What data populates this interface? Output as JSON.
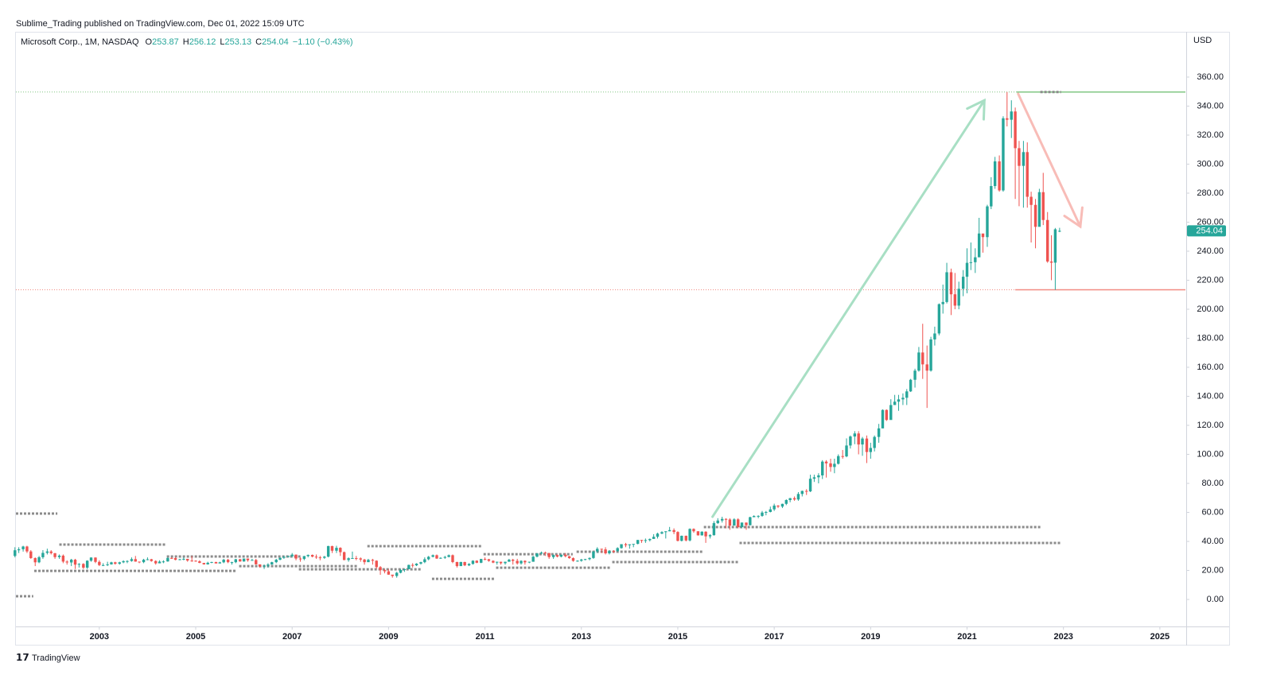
{
  "byline": "Sublime_Trading published on TradingView.com, Dec 01, 2022 15:09 UTC",
  "brand": "TradingView",
  "chart_data": {
    "type": "candlestick",
    "title": "Microsoft Corp., 1M, NASDAQ",
    "ohlc_labels": [
      "O",
      "H",
      "L",
      "C"
    ],
    "change": "−1.10 (−0.43%)",
    "currency": "USD",
    "up_color": "#26a69a",
    "down_color": "#ef5350",
    "x": [
      2001.25,
      2001.33,
      2001.42,
      2001.5,
      2001.58,
      2001.67,
      2001.75,
      2001.83,
      2001.92,
      2002,
      2002.08,
      2002.17,
      2002.25,
      2002.33,
      2002.42,
      2002.5,
      2002.58,
      2002.67,
      2002.75,
      2002.83,
      2002.92,
      2003,
      2003.08,
      2003.17,
      2003.25,
      2003.33,
      2003.42,
      2003.5,
      2003.58,
      2003.67,
      2003.75,
      2003.83,
      2003.92,
      2004,
      2004.08,
      2004.17,
      2004.25,
      2004.33,
      2004.42,
      2004.5,
      2004.58,
      2004.67,
      2004.75,
      2004.83,
      2004.92,
      2005,
      2005.08,
      2005.17,
      2005.25,
      2005.33,
      2005.42,
      2005.5,
      2005.58,
      2005.67,
      2005.75,
      2005.83,
      2005.92,
      2006,
      2006.08,
      2006.17,
      2006.25,
      2006.33,
      2006.42,
      2006.5,
      2006.58,
      2006.67,
      2006.75,
      2006.83,
      2006.92,
      2007,
      2007.08,
      2007.17,
      2007.25,
      2007.33,
      2007.42,
      2007.5,
      2007.58,
      2007.67,
      2007.75,
      2007.83,
      2007.92,
      2008,
      2008.08,
      2008.17,
      2008.25,
      2008.33,
      2008.42,
      2008.5,
      2008.58,
      2008.67,
      2008.75,
      2008.83,
      2008.92,
      2009,
      2009.08,
      2009.17,
      2009.25,
      2009.33,
      2009.42,
      2009.5,
      2009.58,
      2009.67,
      2009.75,
      2009.83,
      2009.92,
      2010,
      2010.08,
      2010.17,
      2010.25,
      2010.33,
      2010.42,
      2010.5,
      2010.58,
      2010.67,
      2010.75,
      2010.83,
      2010.92,
      2011,
      2011.08,
      2011.17,
      2011.25,
      2011.33,
      2011.42,
      2011.5,
      2011.58,
      2011.67,
      2011.75,
      2011.83,
      2011.92,
      2012,
      2012.08,
      2012.17,
      2012.25,
      2012.33,
      2012.42,
      2012.5,
      2012.58,
      2012.67,
      2012.75,
      2012.83,
      2012.92,
      2013,
      2013.08,
      2013.17,
      2013.25,
      2013.33,
      2013.42,
      2013.5,
      2013.58,
      2013.67,
      2013.75,
      2013.83,
      2013.92,
      2014,
      2014.08,
      2014.17,
      2014.25,
      2014.33,
      2014.42,
      2014.5,
      2014.58,
      2014.67,
      2014.75,
      2014.83,
      2014.92,
      2015,
      2015.08,
      2015.17,
      2015.25,
      2015.33,
      2015.42,
      2015.5,
      2015.58,
      2015.67,
      2015.75,
      2015.83,
      2015.92,
      2016,
      2016.08,
      2016.17,
      2016.25,
      2016.33,
      2016.42,
      2016.5,
      2016.58,
      2016.67,
      2016.75,
      2016.83,
      2016.92,
      2017,
      2017.08,
      2017.17,
      2017.25,
      2017.33,
      2017.42,
      2017.5,
      2017.58,
      2017.67,
      2017.75,
      2017.83,
      2017.92,
      2018,
      2018.08,
      2018.17,
      2018.25,
      2018.33,
      2018.42,
      2018.5,
      2018.58,
      2018.67,
      2018.75,
      2018.83,
      2018.92,
      2019,
      2019.08,
      2019.17,
      2019.25,
      2019.33,
      2019.42,
      2019.5,
      2019.58,
      2019.67,
      2019.75,
      2019.83,
      2019.92,
      2020,
      2020.08,
      2020.17,
      2020.25,
      2020.33,
      2020.42,
      2020.5,
      2020.58,
      2020.67,
      2020.75,
      2020.83,
      2020.92,
      2021,
      2021.08,
      2021.17,
      2021.25,
      2021.33,
      2021.42,
      2021.5,
      2021.58,
      2021.67,
      2021.75,
      2021.83,
      2021.92,
      2022,
      2022.08,
      2022.17,
      2022.25,
      2022.33,
      2022.42,
      2022.5,
      2022.58,
      2022.67,
      2022.75,
      2022.83,
      2022.92
    ],
    "open": [
      30.0,
      33.9,
      34.6,
      36.5,
      33.1,
      28.5,
      25.6,
      29.1,
      32.1,
      33.1,
      31.9,
      29.2,
      30.2,
      26.1,
      25.5,
      27.4,
      24.0,
      24.5,
      21.9,
      26.7,
      28.9,
      25.9,
      23.7,
      23.7,
      24.2,
      25.6,
      24.6,
      25.6,
      26.4,
      26.5,
      27.8,
      26.1,
      25.7,
      27.4,
      27.7,
      26.5,
      24.9,
      26.1,
      26.2,
      28.6,
      28.5,
      27.3,
      27.7,
      28.0,
      26.8,
      26.7,
      26.3,
      25.2,
      24.2,
      25.3,
      25.8,
      24.8,
      25.6,
      27.4,
      25.7,
      25.7,
      27.7,
      26.2,
      28.2,
      27.0,
      27.2,
      24.2,
      22.7,
      23.3,
      24.1,
      25.7,
      27.4,
      28.7,
      29.4,
      29.9,
      30.9,
      28.2,
      27.9,
      29.9,
      30.7,
      29.5,
      29.0,
      28.7,
      29.5,
      36.8,
      33.6,
      35.6,
      32.6,
      27.2,
      28.4,
      28.5,
      28.3,
      27.5,
      25.7,
      27.3,
      26.7,
      22.3,
      20.2,
      19.4,
      17.1,
      16.2,
      18.4,
      20.3,
      20.9,
      23.8,
      23.5,
      24.7,
      25.7,
      27.7,
      29.4,
      30.5,
      28.2,
      28.7,
      29.3,
      30.5,
      25.8,
      23.0,
      25.8,
      23.5,
      24.5,
      26.7,
      25.3,
      27.9,
      27.7,
      26.6,
      25.4,
      26.0,
      25.0,
      26.0,
      27.4,
      26.6,
      24.9,
      26.6,
      25.6,
      26.0,
      29.5,
      31.7,
      32.3,
      32.0,
      29.2,
      30.6,
      29.5,
      30.8,
      29.8,
      28.5,
      26.6,
      26.7,
      27.5,
      27.8,
      28.6,
      33.1,
      34.9,
      34.5,
      31.8,
      33.4,
      33.3,
      35.4,
      38.1,
      37.4,
      38.0,
      38.3,
      41.0,
      40.4,
      40.9,
      41.7,
      43.2,
      45.4,
      46.4,
      47.0,
      47.8,
      46.5,
      40.4,
      43.9,
      40.7,
      48.6,
      47.0,
      44.2,
      46.7,
      43.5,
      44.3,
      52.6,
      54.4,
      55.5,
      55.1,
      50.9,
      55.2,
      49.9,
      53.0,
      51.2,
      56.7,
      57.5,
      57.6,
      59.9,
      60.3,
      62.1,
      64.7,
      64.0,
      65.9,
      68.5,
      69.8,
      68.9,
      72.7,
      74.8,
      74.5,
      83.2,
      84.2,
      85.5,
      95.0,
      93.8,
      91.3,
      93.5,
      98.8,
      98.6,
      106.1,
      112.3,
      114.4,
      106.8,
      110.9,
      101.6,
      104.4,
      112.0,
      117.9,
      130.6,
      123.7,
      134.0,
      136.3,
      137.9,
      139.0,
      143.4,
      151.4,
      157.7,
      170.2,
      162.0,
      157.7,
      179.2,
      183.3,
      203.5,
      205.0,
      225.5,
      210.3,
      202.5,
      214.1,
      222.4,
      232.0,
      232.4,
      235.8,
      252.2,
      249.7,
      270.9,
      284.9,
      301.9,
      281.9,
      331.6,
      330.6,
      336.3,
      311.0,
      298.8,
      308.3,
      277.5,
      271.9,
      256.8,
      280.7,
      261.5,
      232.9,
      232.1,
      253.87
    ],
    "high": [
      36,
      36,
      37,
      37,
      34,
      29,
      30,
      34,
      35,
      34,
      32,
      31,
      31,
      27,
      28,
      28,
      25,
      25,
      27,
      29,
      29,
      27,
      25,
      26,
      26,
      26,
      26,
      27,
      27,
      29,
      30,
      26,
      28,
      29,
      28,
      27,
      27,
      27,
      29,
      29,
      29,
      28,
      29,
      28,
      30,
      27,
      27,
      25,
      26,
      26,
      26,
      26,
      28,
      28,
      26,
      28,
      28,
      28,
      28,
      28,
      28,
      24,
      24,
      25,
      26,
      28,
      29,
      30,
      30,
      32,
      31,
      29,
      30,
      31,
      31,
      31,
      30,
      30,
      37,
      37,
      37,
      36,
      33,
      29,
      33,
      30,
      29,
      28,
      28,
      28,
      27,
      23,
      21,
      21,
      17,
      19,
      21,
      21,
      24,
      25,
      25,
      26,
      29,
      30,
      31,
      31,
      29,
      30,
      31,
      31,
      26,
      26,
      26,
      25,
      27,
      27,
      28,
      29,
      28,
      27,
      26,
      26,
      26,
      28,
      28,
      28,
      27,
      27,
      26,
      30,
      32,
      33,
      33,
      32,
      31,
      31,
      31,
      32,
      30,
      29,
      27,
      28,
      28,
      29,
      33,
      36,
      35,
      36,
      34,
      34,
      36,
      38,
      39,
      38,
      38,
      41,
      41,
      42,
      42,
      45,
      46,
      47,
      47,
      50,
      49,
      47,
      44,
      44,
      49,
      49,
      47,
      47,
      47,
      45,
      54,
      56,
      57,
      56,
      56,
      56,
      56,
      53,
      53,
      57,
      58,
      58,
      61,
      61,
      64,
      66,
      65,
      66,
      69,
      70,
      71,
      74,
      75,
      76,
      86,
      86,
      87,
      96,
      96,
      97,
      97,
      100,
      103,
      111,
      113,
      116,
      116,
      112,
      113,
      108,
      113,
      121,
      131,
      131,
      138,
      141,
      141,
      142,
      145,
      152,
      159,
      174,
      190,
      175,
      181,
      188,
      204,
      217,
      232,
      228,
      225,
      219,
      227,
      242,
      246,
      242,
      263,
      252,
      272,
      291,
      305,
      306,
      333,
      349.7,
      344,
      339,
      316,
      316,
      315,
      281,
      276,
      283,
      294,
      267,
      251,
      256,
      256.12
    ],
    "low": [
      29,
      32,
      33,
      32,
      28,
      23,
      25,
      28,
      31,
      31,
      28,
      28,
      25,
      24,
      23,
      21,
      22,
      21,
      21,
      26,
      25,
      23,
      23,
      23,
      24,
      24,
      24,
      25,
      25,
      26,
      26,
      25,
      25,
      27,
      26,
      24,
      25,
      25,
      26,
      28,
      27,
      27,
      27,
      26,
      26,
      26,
      25,
      24,
      24,
      25,
      25,
      25,
      25,
      25,
      24,
      25,
      26,
      26,
      26,
      27,
      24,
      22,
      21,
      22,
      24,
      25,
      27,
      28,
      29,
      29,
      27,
      26,
      27,
      29,
      29,
      28,
      27,
      28,
      29,
      32,
      32,
      30,
      27,
      26,
      28,
      27,
      26,
      24,
      26,
      24,
      21,
      17,
      18,
      17,
      15,
      15,
      18,
      19,
      21,
      22,
      23,
      24,
      25,
      27,
      29,
      28,
      28,
      28,
      29,
      25,
      22,
      23,
      23,
      23,
      24,
      25,
      25,
      27,
      26,
      25,
      24,
      24,
      24,
      26,
      24,
      24,
      24,
      24,
      25,
      26,
      29,
      31,
      30,
      28,
      28,
      29,
      29,
      29,
      28,
      26,
      26,
      26,
      27,
      27,
      28,
      32,
      32,
      31,
      31,
      32,
      33,
      35,
      36,
      35,
      36,
      38,
      39,
      39,
      40,
      42,
      42,
      45,
      42,
      47,
      45,
      40,
      40,
      40,
      40,
      46,
      44,
      44,
      39,
      42,
      44,
      52,
      53,
      49,
      48,
      51,
      49,
      49,
      48,
      51,
      57,
      56,
      57,
      58,
      60,
      61,
      63,
      63,
      65,
      67,
      68,
      68,
      71,
      72,
      74,
      81,
      80,
      83,
      84,
      88,
      87,
      93,
      97,
      98,
      104,
      107,
      100,
      99,
      94,
      97,
      102,
      108,
      118,
      123,
      124,
      134,
      130,
      134,
      134,
      143,
      146,
      157,
      152,
      132,
      157,
      175,
      182,
      197,
      204,
      196,
      200,
      200,
      209,
      211,
      227,
      225,
      238,
      239,
      243,
      269,
      283,
      281,
      281,
      326,
      318,
      276,
      271,
      270,
      270,
      246,
      242,
      257,
      258,
      232,
      220,
      213.4,
      253.13
    ],
    "close": [
      33.9,
      34.6,
      36.5,
      33.1,
      28.5,
      25.6,
      29.1,
      32.1,
      33.1,
      31.9,
      29.2,
      30.2,
      26.1,
      25.5,
      27.4,
      24.0,
      24.5,
      21.9,
      26.7,
      28.9,
      25.9,
      23.7,
      23.7,
      24.2,
      25.6,
      24.6,
      25.6,
      26.4,
      26.5,
      27.8,
      26.1,
      25.7,
      27.4,
      27.7,
      26.5,
      24.9,
      26.1,
      26.2,
      28.6,
      28.5,
      27.3,
      27.7,
      28.0,
      26.8,
      26.7,
      26.3,
      25.2,
      24.2,
      25.3,
      25.8,
      24.8,
      25.6,
      27.4,
      25.7,
      25.7,
      27.7,
      26.2,
      28.2,
      27.0,
      27.2,
      24.2,
      22.7,
      23.3,
      24.1,
      25.7,
      27.4,
      28.7,
      29.4,
      29.9,
      30.9,
      28.2,
      27.9,
      29.9,
      30.7,
      29.5,
      29.0,
      28.7,
      29.5,
      36.8,
      33.6,
      35.6,
      32.6,
      27.2,
      28.4,
      28.5,
      28.3,
      27.5,
      25.7,
      27.3,
      26.7,
      22.3,
      20.2,
      19.4,
      17.1,
      16.2,
      18.4,
      20.3,
      20.9,
      23.8,
      23.5,
      24.7,
      25.7,
      27.7,
      29.4,
      30.5,
      28.2,
      28.7,
      29.3,
      30.5,
      25.8,
      23.0,
      25.8,
      23.5,
      24.5,
      26.7,
      25.3,
      27.9,
      27.7,
      26.6,
      25.4,
      26.0,
      25.0,
      26.0,
      27.4,
      26.6,
      24.9,
      26.6,
      25.6,
      26.0,
      29.5,
      31.7,
      32.3,
      32.0,
      29.2,
      30.6,
      29.5,
      30.8,
      29.8,
      28.5,
      26.6,
      26.7,
      27.5,
      27.8,
      28.6,
      33.1,
      34.9,
      34.5,
      31.8,
      33.4,
      33.3,
      35.4,
      38.1,
      37.4,
      38.0,
      38.3,
      41.0,
      40.4,
      40.9,
      41.7,
      43.2,
      45.4,
      46.4,
      47.0,
      47.8,
      46.5,
      40.4,
      43.9,
      40.7,
      48.6,
      47.0,
      44.2,
      46.7,
      43.5,
      44.3,
      52.6,
      54.4,
      55.5,
      55.1,
      50.9,
      55.2,
      49.9,
      53.0,
      51.2,
      56.7,
      57.5,
      57.6,
      59.9,
      60.3,
      62.1,
      64.7,
      64.0,
      65.9,
      68.5,
      69.8,
      68.9,
      72.7,
      74.8,
      74.5,
      83.2,
      84.2,
      85.5,
      95.0,
      93.8,
      91.3,
      93.5,
      98.8,
      98.6,
      106.1,
      112.3,
      114.4,
      106.8,
      110.9,
      101.6,
      104.4,
      112.0,
      117.9,
      130.6,
      123.7,
      134.0,
      136.3,
      137.9,
      139.0,
      143.4,
      151.4,
      157.7,
      170.2,
      162.0,
      157.7,
      179.2,
      183.3,
      203.5,
      205.0,
      225.5,
      210.3,
      202.5,
      214.1,
      222.4,
      232.0,
      232.4,
      235.8,
      252.2,
      249.7,
      270.9,
      284.9,
      301.9,
      281.9,
      331.6,
      330.6,
      336.3,
      311.0,
      298.8,
      308.3,
      277.5,
      271.9,
      256.8,
      280.7,
      261.5,
      232.9,
      232.1,
      255.1,
      254.04
    ],
    "levels": [
      {
        "x": [
          2001.27,
          2002.13
        ],
        "value": 59.2
      },
      {
        "x": [
          2001.27,
          2001.63
        ],
        "value": 2.2
      },
      {
        "x": [
          2002.17,
          2004.37
        ],
        "value": 37.8
      },
      {
        "x": [
          2001.65,
          2005.85
        ],
        "value": 19.7
      },
      {
        "x": [
          2004.4,
          2007.2
        ],
        "value": 29.6
      },
      {
        "x": [
          2005.9,
          2008.36
        ],
        "value": 23
      },
      {
        "x": [
          2007.14,
          2009.68
        ],
        "value": 20.8
      },
      {
        "x": [
          2008.56,
          2010.95
        ],
        "value": 36.7
      },
      {
        "x": [
          2009.9,
          2011.2
        ],
        "value": 14.2
      },
      {
        "x": [
          2010.97,
          2012.82
        ],
        "value": 31.2
      },
      {
        "x": [
          2011.23,
          2013.61
        ],
        "value": 21.9
      },
      {
        "x": [
          2012.9,
          2015.54
        ],
        "value": 32.9
      },
      {
        "x": [
          2013.64,
          2016.28
        ],
        "value": 25.8
      },
      {
        "x": [
          2015.54,
          2022.52
        ],
        "value": 49.9
      },
      {
        "x": [
          2016.28,
          2022.95
        ],
        "value": 38.9
      },
      {
        "x": [
          2022.52,
          2022.95
        ],
        "value": 349.7
      }
    ],
    "hlines": [
      {
        "value": 349.7,
        "x_start": 2022.03,
        "color": "#81c784"
      },
      {
        "value": 213.4,
        "x_start": 2022.0,
        "color": "#f28b82"
      }
    ],
    "arrows": [
      {
        "x": [
          2015.72,
          2021.36
        ],
        "y": [
          57,
          344
        ],
        "color": "#a8dfc4"
      },
      {
        "x": [
          2022.06,
          2023.35
        ],
        "y": [
          348.5,
          257
        ],
        "color": "#f8bcb7"
      }
    ],
    "xlim": [
      2001.27,
      2025.53
    ],
    "ylim": [
      -18.6,
      391.2
    ],
    "xticks": [
      2003,
      2005,
      2007,
      2009,
      2011,
      2013,
      2015,
      2017,
      2019,
      2021,
      2023,
      2025
    ],
    "yticks": [
      {
        "value": 0,
        "label": "0.00"
      },
      {
        "value": 20,
        "label": "20.00"
      },
      {
        "value": 40,
        "label": "40.00"
      },
      {
        "value": 60,
        "label": "60.00"
      },
      {
        "value": 80,
        "label": "80.00"
      },
      {
        "value": 100,
        "label": "100.00"
      },
      {
        "value": 120,
        "label": "120.00"
      },
      {
        "value": 140,
        "label": "140.00"
      },
      {
        "value": 160,
        "label": "160.00"
      },
      {
        "value": 180,
        "label": "180.00"
      },
      {
        "value": 200,
        "label": "200.00"
      },
      {
        "value": 220,
        "label": "220.00"
      },
      {
        "value": 240,
        "label": "240.00"
      },
      {
        "value": 260,
        "label": "260.00"
      },
      {
        "value": 280,
        "label": "280.00"
      },
      {
        "value": 300,
        "label": "300.00"
      },
      {
        "value": 320,
        "label": "320.00"
      },
      {
        "value": 340,
        "label": "340.00"
      },
      {
        "value": 360,
        "label": "360.00"
      }
    ]
  }
}
